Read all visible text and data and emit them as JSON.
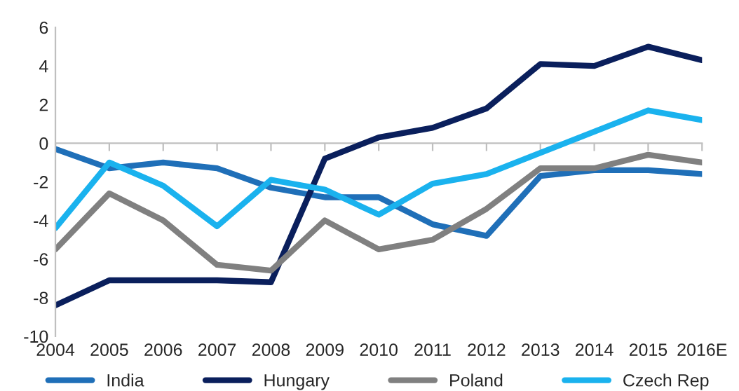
{
  "chart_data": {
    "type": "line",
    "categories": [
      "2004",
      "2005",
      "2006",
      "2007",
      "2008",
      "2009",
      "2010",
      "2011",
      "2012",
      "2013",
      "2014",
      "2015",
      "2016E"
    ],
    "series": [
      {
        "name": "India",
        "color": "#1f6fb8",
        "values": [
          -0.3,
          -1.3,
          -1.0,
          -1.3,
          -2.3,
          -2.8,
          -2.8,
          -4.2,
          -4.8,
          -1.7,
          -1.4,
          -1.4,
          -1.6
        ]
      },
      {
        "name": "Hungary",
        "color": "#0a1f5c",
        "values": [
          -8.4,
          -7.1,
          -7.1,
          -7.1,
          -7.2,
          -0.8,
          0.3,
          0.8,
          1.8,
          4.1,
          4.0,
          5.0,
          4.3
        ]
      },
      {
        "name": "Poland",
        "color": "#808080",
        "values": [
          -5.5,
          -2.6,
          -4.0,
          -6.3,
          -6.6,
          -4.0,
          -5.5,
          -5.0,
          -3.4,
          -1.3,
          -1.3,
          -0.6,
          -1.0
        ]
      },
      {
        "name": "Czech Rep",
        "color": "#1ab2ee",
        "values": [
          -4.4,
          -1.0,
          -2.2,
          -4.3,
          -1.9,
          -2.4,
          -3.7,
          -2.1,
          -1.6,
          -0.5,
          0.6,
          1.7,
          1.2
        ]
      }
    ],
    "ylim": [
      -10,
      6
    ],
    "yticks": [
      -10,
      -8,
      -6,
      -4,
      -2,
      0,
      2,
      4,
      6
    ],
    "legend": "bottom",
    "marker": "none",
    "line_style": "solid"
  }
}
